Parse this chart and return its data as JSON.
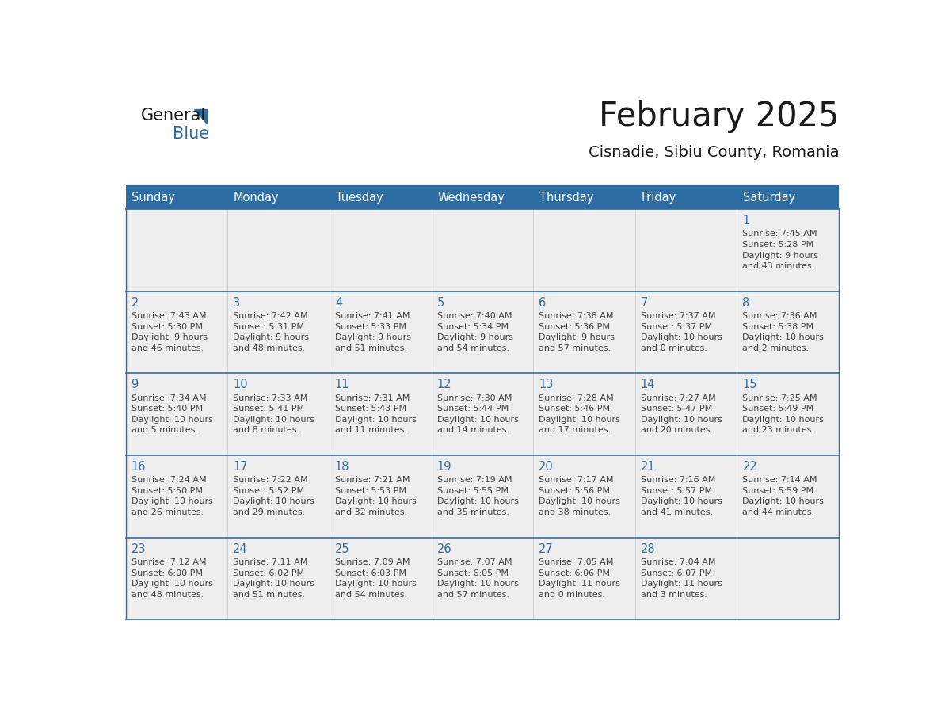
{
  "title": "February 2025",
  "subtitle": "Cisnadie, Sibiu County, Romania",
  "header_color": "#2E6DA4",
  "header_text_color": "#FFFFFF",
  "day_names": [
    "Sunday",
    "Monday",
    "Tuesday",
    "Wednesday",
    "Thursday",
    "Friday",
    "Saturday"
  ],
  "bg_color": "#FFFFFF",
  "cell_bg": "#EEEEEE",
  "grid_color": "#2E6DA4",
  "date_color": "#2E6DA4",
  "text_color": "#404040",
  "logo_general_color": "#1A1A1A",
  "logo_blue_color": "#2E6DA4",
  "weeks": [
    [
      {
        "day": null,
        "text": ""
      },
      {
        "day": null,
        "text": ""
      },
      {
        "day": null,
        "text": ""
      },
      {
        "day": null,
        "text": ""
      },
      {
        "day": null,
        "text": ""
      },
      {
        "day": null,
        "text": ""
      },
      {
        "day": 1,
        "text": "Sunrise: 7:45 AM\nSunset: 5:28 PM\nDaylight: 9 hours\nand 43 minutes."
      }
    ],
    [
      {
        "day": 2,
        "text": "Sunrise: 7:43 AM\nSunset: 5:30 PM\nDaylight: 9 hours\nand 46 minutes."
      },
      {
        "day": 3,
        "text": "Sunrise: 7:42 AM\nSunset: 5:31 PM\nDaylight: 9 hours\nand 48 minutes."
      },
      {
        "day": 4,
        "text": "Sunrise: 7:41 AM\nSunset: 5:33 PM\nDaylight: 9 hours\nand 51 minutes."
      },
      {
        "day": 5,
        "text": "Sunrise: 7:40 AM\nSunset: 5:34 PM\nDaylight: 9 hours\nand 54 minutes."
      },
      {
        "day": 6,
        "text": "Sunrise: 7:38 AM\nSunset: 5:36 PM\nDaylight: 9 hours\nand 57 minutes."
      },
      {
        "day": 7,
        "text": "Sunrise: 7:37 AM\nSunset: 5:37 PM\nDaylight: 10 hours\nand 0 minutes."
      },
      {
        "day": 8,
        "text": "Sunrise: 7:36 AM\nSunset: 5:38 PM\nDaylight: 10 hours\nand 2 minutes."
      }
    ],
    [
      {
        "day": 9,
        "text": "Sunrise: 7:34 AM\nSunset: 5:40 PM\nDaylight: 10 hours\nand 5 minutes."
      },
      {
        "day": 10,
        "text": "Sunrise: 7:33 AM\nSunset: 5:41 PM\nDaylight: 10 hours\nand 8 minutes."
      },
      {
        "day": 11,
        "text": "Sunrise: 7:31 AM\nSunset: 5:43 PM\nDaylight: 10 hours\nand 11 minutes."
      },
      {
        "day": 12,
        "text": "Sunrise: 7:30 AM\nSunset: 5:44 PM\nDaylight: 10 hours\nand 14 minutes."
      },
      {
        "day": 13,
        "text": "Sunrise: 7:28 AM\nSunset: 5:46 PM\nDaylight: 10 hours\nand 17 minutes."
      },
      {
        "day": 14,
        "text": "Sunrise: 7:27 AM\nSunset: 5:47 PM\nDaylight: 10 hours\nand 20 minutes."
      },
      {
        "day": 15,
        "text": "Sunrise: 7:25 AM\nSunset: 5:49 PM\nDaylight: 10 hours\nand 23 minutes."
      }
    ],
    [
      {
        "day": 16,
        "text": "Sunrise: 7:24 AM\nSunset: 5:50 PM\nDaylight: 10 hours\nand 26 minutes."
      },
      {
        "day": 17,
        "text": "Sunrise: 7:22 AM\nSunset: 5:52 PM\nDaylight: 10 hours\nand 29 minutes."
      },
      {
        "day": 18,
        "text": "Sunrise: 7:21 AM\nSunset: 5:53 PM\nDaylight: 10 hours\nand 32 minutes."
      },
      {
        "day": 19,
        "text": "Sunrise: 7:19 AM\nSunset: 5:55 PM\nDaylight: 10 hours\nand 35 minutes."
      },
      {
        "day": 20,
        "text": "Sunrise: 7:17 AM\nSunset: 5:56 PM\nDaylight: 10 hours\nand 38 minutes."
      },
      {
        "day": 21,
        "text": "Sunrise: 7:16 AM\nSunset: 5:57 PM\nDaylight: 10 hours\nand 41 minutes."
      },
      {
        "day": 22,
        "text": "Sunrise: 7:14 AM\nSunset: 5:59 PM\nDaylight: 10 hours\nand 44 minutes."
      }
    ],
    [
      {
        "day": 23,
        "text": "Sunrise: 7:12 AM\nSunset: 6:00 PM\nDaylight: 10 hours\nand 48 minutes."
      },
      {
        "day": 24,
        "text": "Sunrise: 7:11 AM\nSunset: 6:02 PM\nDaylight: 10 hours\nand 51 minutes."
      },
      {
        "day": 25,
        "text": "Sunrise: 7:09 AM\nSunset: 6:03 PM\nDaylight: 10 hours\nand 54 minutes."
      },
      {
        "day": 26,
        "text": "Sunrise: 7:07 AM\nSunset: 6:05 PM\nDaylight: 10 hours\nand 57 minutes."
      },
      {
        "day": 27,
        "text": "Sunrise: 7:05 AM\nSunset: 6:06 PM\nDaylight: 11 hours\nand 0 minutes."
      },
      {
        "day": 28,
        "text": "Sunrise: 7:04 AM\nSunset: 6:07 PM\nDaylight: 11 hours\nand 3 minutes."
      },
      {
        "day": null,
        "text": ""
      }
    ]
  ]
}
